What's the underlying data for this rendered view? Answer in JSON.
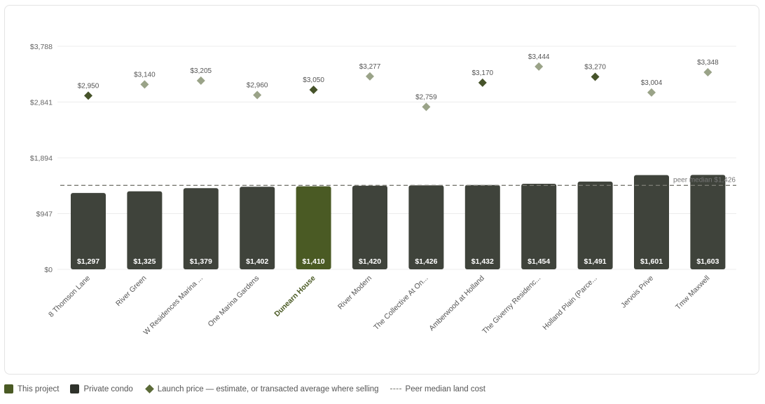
{
  "chart_data": {
    "type": "bar",
    "categories": [
      "8 Thomson Lane",
      "River Green",
      "W Residences Marina ...",
      "One Marina Gardens",
      "Dunearn House",
      "River Modern",
      "The Collective At On...",
      "Amberwood at Holland",
      "The Giverny Residenc...",
      "Holland Plain (Parce...",
      "Jervois Prive",
      "Tmw Maxwell"
    ],
    "highlight_index": 4,
    "bar_labels": [
      "$1,297",
      "$1,325",
      "$1,379",
      "$1,402",
      "$1,410",
      "$1,420",
      "$1,426",
      "$1,432",
      "$1,454",
      "$1,491",
      "$1,601",
      "$1,603"
    ],
    "series": [
      {
        "name": "Private condo",
        "type": "bar",
        "values": [
          1297,
          1325,
          1379,
          1402,
          1410,
          1420,
          1426,
          1432,
          1454,
          1491,
          1601,
          1603
        ]
      },
      {
        "name": "Launch price — estimate, or transacted average where selling",
        "type": "scatter",
        "values": [
          2950,
          3140,
          3205,
          2960,
          3050,
          3277,
          2759,
          3170,
          3444,
          3270,
          3004,
          3348
        ],
        "labels": [
          "$2,950",
          "$3,140",
          "$3,205",
          "$2,960",
          "$3,050",
          "$3,277",
          "$2,759",
          "$3,170",
          "$3,444",
          "$3,270",
          "$3,004",
          "$3,348"
        ],
        "dark": [
          true,
          false,
          false,
          false,
          true,
          false,
          false,
          true,
          false,
          true,
          false,
          false
        ]
      }
    ],
    "reference_line": {
      "value": 1426,
      "label": "peer median $1,426"
    },
    "y_ticks": [
      0,
      947,
      1894,
      2841,
      3788
    ],
    "y_tick_labels": [
      "$0",
      "$947",
      "$1,894",
      "$2,841",
      "$3,788"
    ],
    "ylim": [
      0,
      3788
    ],
    "grid": true,
    "legend_position": "bottom-left"
  },
  "legend": {
    "this_project": "This project",
    "private_condo": "Private condo",
    "launch_price": "Launch price — estimate, or transacted average where selling",
    "peer_median": "Peer median land cost"
  },
  "colors": {
    "highlight": "#4a5a24",
    "bar": "#3f433b",
    "diamond_dark": "#46532a",
    "diamond_light": "#9aa388",
    "grid": "#ececec",
    "reference": "#7a7a72"
  }
}
